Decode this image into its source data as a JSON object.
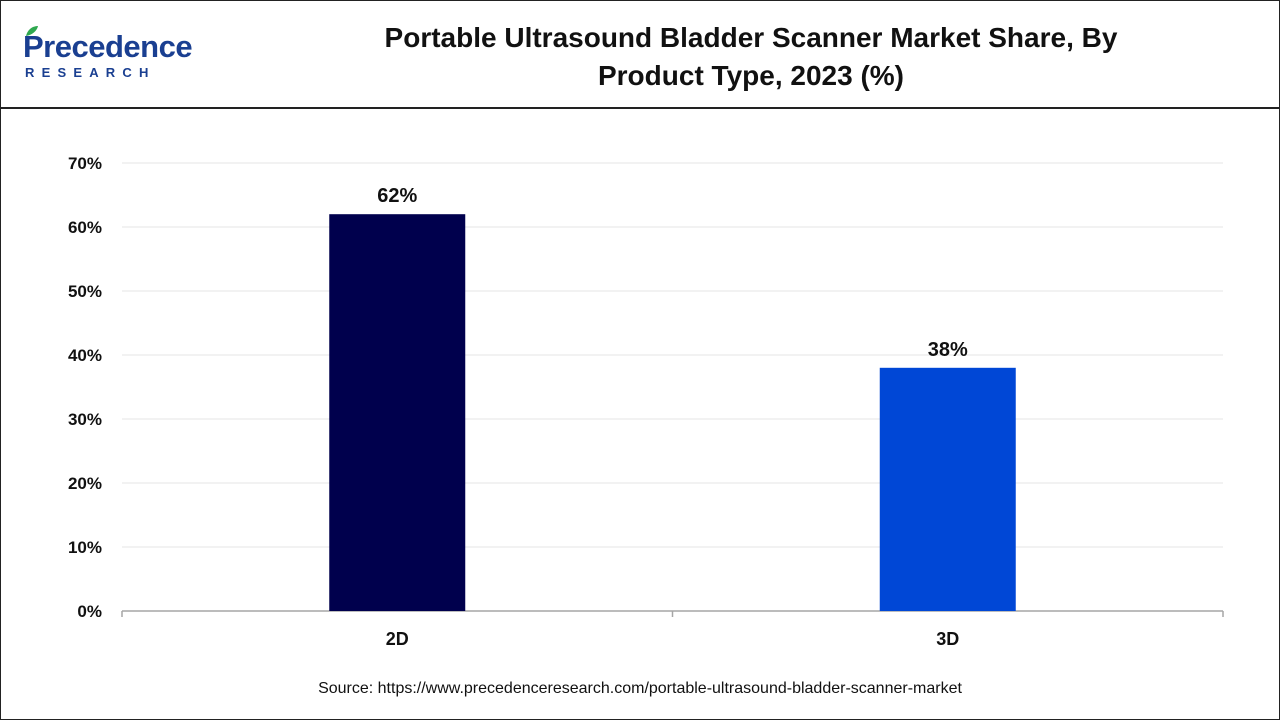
{
  "header": {
    "logo_main": "Precedence",
    "logo_sub": "RESEARCH",
    "title_line1": "Portable Ultrasound Bladder Scanner Market Share, By",
    "title_line2": "Product Type, 2023 (%)"
  },
  "chart_data": {
    "type": "bar",
    "title": "Portable Ultrasound Bladder Scanner Market Share, By Product Type, 2023 (%)",
    "categories": [
      "2D",
      "3D"
    ],
    "values": [
      62,
      38
    ],
    "value_labels": [
      "62%",
      "38%"
    ],
    "colors": [
      "#00004d",
      "#0047d6"
    ],
    "ylim": [
      0,
      70
    ],
    "yticks": [
      0,
      10,
      20,
      30,
      40,
      50,
      60,
      70
    ],
    "ytick_labels": [
      "0%",
      "10%",
      "20%",
      "30%",
      "40%",
      "50%",
      "60%",
      "70%"
    ],
    "xlabel": "",
    "ylabel": "",
    "grid": true,
    "legend": "none"
  },
  "footer": {
    "source": "Source: https://www.precedenceresearch.com/portable-ultrasound-bladder-scanner-market"
  }
}
